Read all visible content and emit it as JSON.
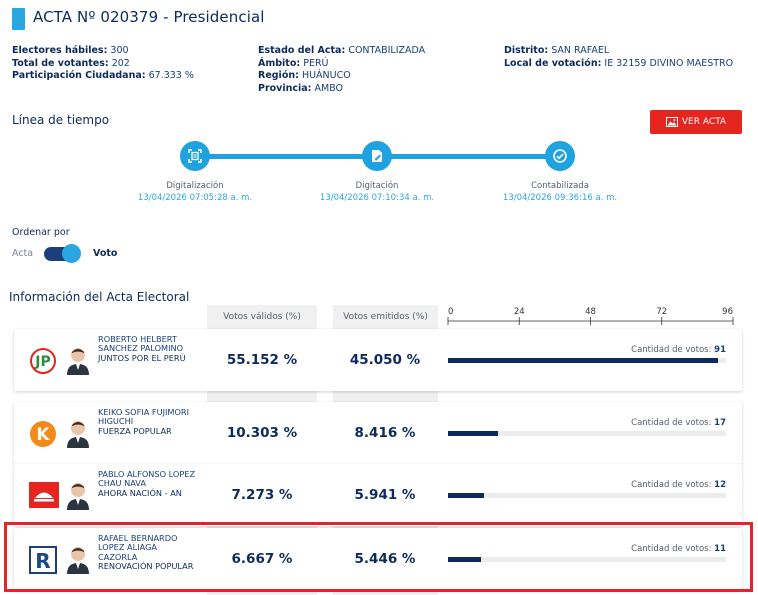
{
  "header": {
    "title": "ACTA Nº 020379 - Presidencial"
  },
  "info": {
    "electores_label": "Electores hábiles:",
    "electores_value": "300",
    "votantes_label": "Total de votantes:",
    "votantes_value": "202",
    "participacion_label": "Participación Ciudadana:",
    "participacion_value": "67.333 %",
    "estado_label": "Estado del Acta:",
    "estado_value": "CONTABILIZADA",
    "ambito_label": "Ámbito:",
    "ambito_value": "PERÚ",
    "region_label": "Región:",
    "region_value": "HUÁNUCO",
    "provincia_label": "Provincia:",
    "provincia_value": "AMBO",
    "distrito_label": "Distrito:",
    "distrito_value": "SAN RAFAEL",
    "local_label": "Local de votación:",
    "local_value": "IE 32159 DIVINO MAESTRO"
  },
  "timeline": {
    "title": "Línea de tiempo",
    "ver_acta": "VER ACTA",
    "steps": [
      {
        "label": "Digitalización",
        "date": "13/04/2026 07:05:28 a. m.",
        "icon": "scan-icon"
      },
      {
        "label": "Digitación",
        "date": "13/04/2026 07:10:34 a. m.",
        "icon": "edit-document-icon"
      },
      {
        "label": "Contabilizada",
        "date": "13/04/2026 09:36:16 a. m.",
        "icon": "check-circle-icon"
      }
    ]
  },
  "sort": {
    "title": "Ordenar por",
    "option_acta": "Acta",
    "option_voto": "Voto"
  },
  "results": {
    "title": "Información del Acta Electoral",
    "col_validos": "Votos válidos (%)",
    "col_emitidos": "Votos emitidos (%)",
    "axis_ticks": [
      "0",
      "24",
      "48",
      "72",
      "96"
    ],
    "axis_max": 96,
    "votes_prefix": "Cantidad de votos:",
    "rows": [
      {
        "name": "ROBERTO HELBERT SANCHEZ PALOMINO",
        "party": "JUNTOS POR EL PERÚ",
        "validos": "55.152 %",
        "emitidos": "45.050 %",
        "votes": "91",
        "votes_n": 91,
        "logo": "juntos-por-el-peru-logo"
      },
      {
        "name": "KEIKO SOFIA FUJIMORI HIGUCHI",
        "party": "FUERZA POPULAR",
        "validos": "10.303 %",
        "emitidos": "8.416 %",
        "votes": "17",
        "votes_n": 17,
        "logo": "fuerza-popular-logo"
      },
      {
        "name": "PABLO ALFONSO LOPEZ CHAU NAVA",
        "party": "AHORA NACIÓN - AN",
        "validos": "7.273 %",
        "emitidos": "5.941 %",
        "votes": "12",
        "votes_n": 12,
        "logo": "ahora-nacion-logo"
      },
      {
        "name": "RAFAEL BERNARDO LOPEZ ALIAGA CAZORLA",
        "party": "RENOVACIÓN POPULAR",
        "validos": "6.667 %",
        "emitidos": "5.446 %",
        "votes": "11",
        "votes_n": 11,
        "logo": "renovacion-popular-logo"
      }
    ]
  },
  "colors": {
    "accent": "#1ea3e0",
    "navy": "#0d2a5c",
    "red": "#e52520"
  }
}
